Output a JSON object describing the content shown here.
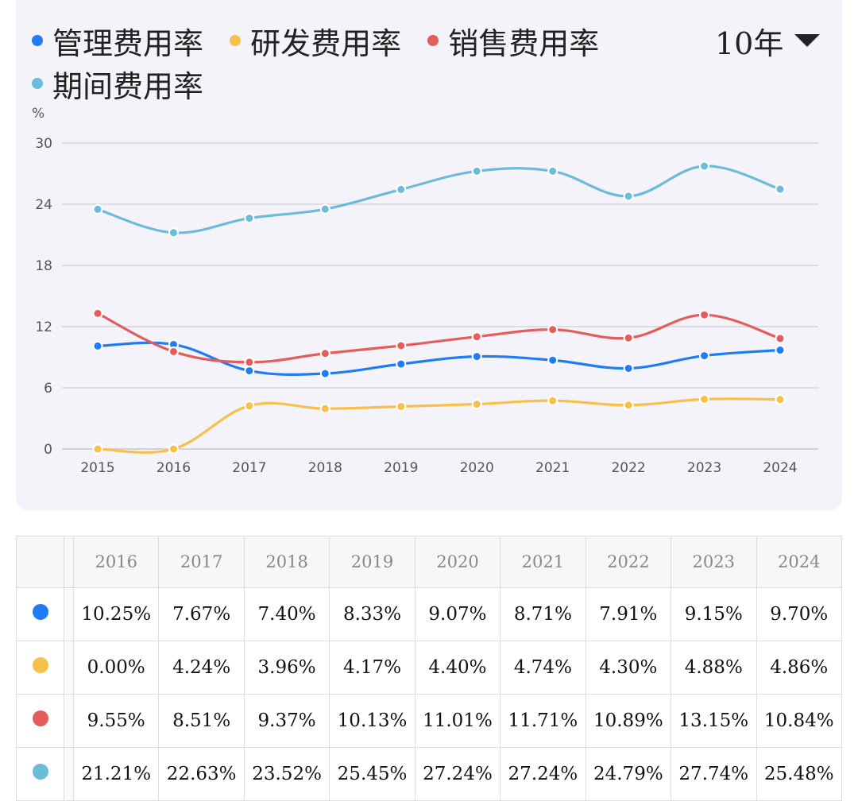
{
  "legend": [
    {
      "label": "管理费用率",
      "color": "#1f7cf2"
    },
    {
      "label": "研发费用率",
      "color": "#f7c04a"
    },
    {
      "label": "销售费用率",
      "color": "#e35d5d"
    },
    {
      "label": "期间费用率",
      "color": "#6bbbd9"
    }
  ],
  "period_selector": {
    "label": "10年"
  },
  "chart_data": {
    "type": "line",
    "unit_label": "%",
    "categories": [
      "2015",
      "2016",
      "2017",
      "2018",
      "2019",
      "2020",
      "2021",
      "2022",
      "2023",
      "2024"
    ],
    "ylim": [
      0,
      30
    ],
    "yticks": [
      0,
      6,
      12,
      18,
      24,
      30
    ],
    "grid": true,
    "series": [
      {
        "name": "管理费用率",
        "color": "#1f7cf2",
        "values": [
          10.1,
          10.25,
          7.67,
          7.4,
          8.33,
          9.07,
          8.71,
          7.91,
          9.15,
          9.7
        ]
      },
      {
        "name": "研发费用率",
        "color": "#f7c04a",
        "values": [
          0.0,
          0.0,
          4.24,
          3.96,
          4.17,
          4.4,
          4.74,
          4.3,
          4.88,
          4.86
        ]
      },
      {
        "name": "销售费用率",
        "color": "#e35d5d",
        "values": [
          13.3,
          9.55,
          8.51,
          9.37,
          10.13,
          11.01,
          11.71,
          10.89,
          13.15,
          10.84
        ]
      },
      {
        "name": "期间费用率",
        "color": "#6bbbd9",
        "values": [
          23.5,
          21.21,
          22.63,
          23.52,
          25.45,
          27.24,
          27.24,
          24.79,
          27.74,
          25.48
        ]
      }
    ]
  },
  "table": {
    "headers": [
      "2016",
      "2017",
      "2018",
      "2019",
      "2020",
      "2021",
      "2022",
      "2023",
      "2024"
    ],
    "rows": [
      {
        "color": "#1f7cf2",
        "cells": [
          "10.25%",
          "7.67%",
          "7.40%",
          "8.33%",
          "9.07%",
          "8.71%",
          "7.91%",
          "9.15%",
          "9.70%"
        ]
      },
      {
        "color": "#f7c04a",
        "cells": [
          "0.00%",
          "4.24%",
          "3.96%",
          "4.17%",
          "4.40%",
          "4.74%",
          "4.30%",
          "4.88%",
          "4.86%"
        ]
      },
      {
        "color": "#e35d5d",
        "cells": [
          "9.55%",
          "8.51%",
          "9.37%",
          "10.13%",
          "11.01%",
          "11.71%",
          "10.89%",
          "13.15%",
          "10.84%"
        ]
      },
      {
        "color": "#6bbbd9",
        "cells": [
          "21.21%",
          "22.63%",
          "23.52%",
          "25.45%",
          "27.24%",
          "27.24%",
          "24.79%",
          "27.74%",
          "25.48%"
        ]
      }
    ]
  }
}
